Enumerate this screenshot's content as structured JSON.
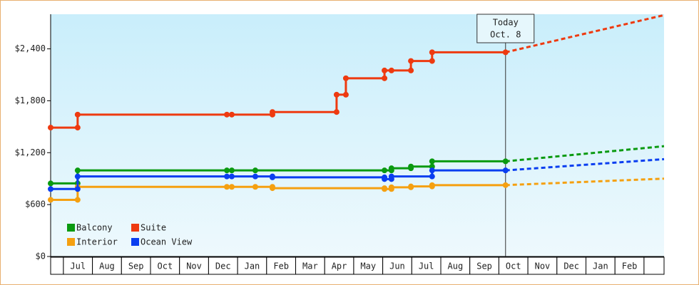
{
  "chart_data": {
    "type": "step-line",
    "xlim": [
      -0.44,
      20.69
    ],
    "ylim": [
      0,
      2800
    ],
    "yticks": [
      {
        "value": 0,
        "label": "$0"
      },
      {
        "value": 600,
        "label": "$600"
      },
      {
        "value": 1200,
        "label": "$1,200"
      },
      {
        "value": 1800,
        "label": "$1,800"
      },
      {
        "value": 2400,
        "label": "$2,400"
      }
    ],
    "categories": [
      "Jul",
      "Aug",
      "Sep",
      "Oct",
      "Nov",
      "Dec",
      "Jan",
      "Feb",
      "Mar",
      "Apr",
      "May",
      "Jun",
      "Jul",
      "Aug",
      "Sep",
      "Oct",
      "Nov",
      "Dec",
      "Jan",
      "Feb"
    ],
    "annotation": {
      "lines": [
        "Today",
        "Oct. 8"
      ],
      "x": 15.23
    },
    "legend": "lower left",
    "series": [
      {
        "name": "Balcony",
        "color": "#0a9a10",
        "x": [
          -0.44,
          0.49,
          0.49,
          5.63,
          5.8,
          6.61,
          11.06,
          11.3,
          11.3,
          11.97,
          11.97,
          12.7,
          12.7,
          15.23
        ],
        "values": [
          845,
          845,
          995,
          995,
          995,
          995,
          995,
          995,
          1020,
          1020,
          1040,
          1040,
          1100,
          1100
        ],
        "forecast_value": 1275
      },
      {
        "name": "Suite",
        "color": "#ee3a10",
        "x": [
          -0.44,
          0.49,
          0.49,
          5.63,
          5.8,
          7.2,
          7.2,
          9.41,
          9.41,
          9.73,
          9.73,
          11.06,
          11.06,
          11.3,
          11.97,
          11.97,
          12.7,
          12.7,
          15.23
        ],
        "values": [
          1490,
          1490,
          1640,
          1640,
          1640,
          1640,
          1670,
          1670,
          1870,
          1870,
          2060,
          2060,
          2150,
          2150,
          2150,
          2260,
          2260,
          2360,
          2360
        ],
        "forecast_value": 2790
      },
      {
        "name": "Interior",
        "color": "#f5a010",
        "x": [
          -0.44,
          0.49,
          0.49,
          5.63,
          5.8,
          6.61,
          7.2,
          7.2,
          11.06,
          11.06,
          11.3,
          11.3,
          11.97,
          11.97,
          12.7,
          12.7,
          15.23
        ],
        "values": [
          655,
          655,
          805,
          805,
          805,
          805,
          805,
          790,
          790,
          780,
          780,
          800,
          800,
          810,
          810,
          825,
          825
        ],
        "forecast_value": 900
      },
      {
        "name": "Ocean View",
        "color": "#0a3ef0",
        "x": [
          -0.44,
          0.49,
          0.49,
          5.63,
          5.8,
          6.61,
          7.2,
          7.2,
          11.06,
          11.06,
          11.3,
          11.3,
          12.7,
          12.7,
          15.23
        ],
        "values": [
          780,
          780,
          925,
          925,
          925,
          925,
          925,
          915,
          915,
          895,
          895,
          925,
          925,
          995,
          995
        ],
        "forecast_value": 1125
      }
    ]
  }
}
